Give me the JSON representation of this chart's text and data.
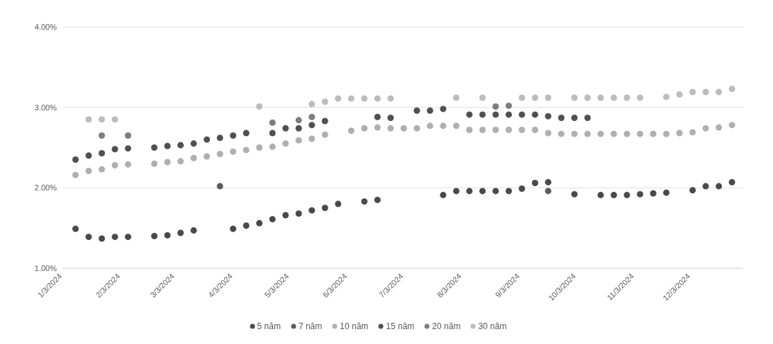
{
  "chart_data": {
    "type": "scatter",
    "xlim": [
      "2024-01-03",
      "2024-12-31"
    ],
    "xticks": [
      {
        "value": "2024-01-03",
        "label": "1/3/2024"
      },
      {
        "value": "2024-02-03",
        "label": "2/3/2024"
      },
      {
        "value": "2024-03-03",
        "label": "3/3/2024"
      },
      {
        "value": "2024-04-03",
        "label": "4/3/2024"
      },
      {
        "value": "2024-05-03",
        "label": "5/3/2024"
      },
      {
        "value": "2024-06-03",
        "label": "6/3/2024"
      },
      {
        "value": "2024-07-03",
        "label": "7/3/2024"
      },
      {
        "value": "2024-08-03",
        "label": "8/3/2024"
      },
      {
        "value": "2024-09-03",
        "label": "9/3/2024"
      },
      {
        "value": "2024-10-03",
        "label": "10/3/2024"
      },
      {
        "value": "2024-11-03",
        "label": "11/3/2024"
      },
      {
        "value": "2024-12-03",
        "label": "12/3/2024"
      }
    ],
    "ylim": [
      1,
      4
    ],
    "yticks": [
      {
        "value": 1,
        "label": "1.00%"
      },
      {
        "value": 2,
        "label": "2.00%"
      },
      {
        "value": 3,
        "label": "3.00%"
      },
      {
        "value": 4,
        "label": "4.00%"
      }
    ],
    "grid": "y",
    "legend": "bottom",
    "marker": "circle",
    "series": [
      {
        "name": "5 năm",
        "color": "#4a4a4a",
        "x": [
          "2024-01-10",
          "2024-01-17",
          "2024-01-24",
          "2024-01-31",
          "2024-02-07",
          "2024-02-21",
          "2024-02-28",
          "2024-03-06",
          "2024-03-13",
          "2024-04-03",
          "2024-04-10",
          "2024-04-17",
          "2024-04-24",
          "2024-05-01",
          "2024-05-08",
          "2024-05-15",
          "2024-05-22",
          "2024-05-29",
          "2024-06-12",
          "2024-06-19",
          "2024-07-24",
          "2024-07-31",
          "2024-08-07",
          "2024-08-14",
          "2024-08-21",
          "2024-08-28",
          "2024-09-04",
          "2024-09-11",
          "2024-09-18",
          "2024-10-02",
          "2024-10-16",
          "2024-10-23",
          "2024-10-30",
          "2024-11-06",
          "2024-11-13",
          "2024-11-20",
          "2024-12-04",
          "2024-12-11",
          "2024-12-18",
          "2024-12-25"
        ],
        "values": [
          1.49,
          1.39,
          1.37,
          1.39,
          1.39,
          1.4,
          1.41,
          1.44,
          1.47,
          1.49,
          1.53,
          1.56,
          1.61,
          1.66,
          1.68,
          1.72,
          1.75,
          1.8,
          1.83,
          1.85,
          1.91,
          1.96,
          1.96,
          1.96,
          1.96,
          1.96,
          1.99,
          2.06,
          2.07,
          1.92,
          1.91,
          1.91,
          1.91,
          1.92,
          1.93,
          1.94,
          1.97,
          2.02,
          2.02,
          2.07
        ]
      },
      {
        "name": "7 năm",
        "color": "#5c5c5c",
        "x": [
          "2024-03-27",
          "2024-09-18"
        ],
        "values": [
          2.02,
          1.96
        ]
      },
      {
        "name": "10 năm",
        "color": "#afafaf",
        "x": [
          "2024-01-10",
          "2024-01-17",
          "2024-01-24",
          "2024-01-31",
          "2024-02-07",
          "2024-02-21",
          "2024-02-28",
          "2024-03-06",
          "2024-03-13",
          "2024-03-20",
          "2024-03-27",
          "2024-04-03",
          "2024-04-10",
          "2024-04-17",
          "2024-04-24",
          "2024-05-01",
          "2024-05-08",
          "2024-05-15",
          "2024-05-22",
          "2024-06-05",
          "2024-06-12",
          "2024-06-19",
          "2024-06-26",
          "2024-07-03",
          "2024-07-10",
          "2024-07-17",
          "2024-07-24",
          "2024-07-31",
          "2024-08-07",
          "2024-08-14",
          "2024-08-21",
          "2024-08-28",
          "2024-09-04",
          "2024-09-11",
          "2024-09-18",
          "2024-09-25",
          "2024-10-02",
          "2024-10-09",
          "2024-10-16",
          "2024-10-23",
          "2024-10-30",
          "2024-11-06",
          "2024-11-13",
          "2024-11-20",
          "2024-11-27",
          "2024-12-04",
          "2024-12-11",
          "2024-12-18",
          "2024-12-25"
        ],
        "values": [
          2.16,
          2.21,
          2.23,
          2.28,
          2.29,
          2.3,
          2.32,
          2.33,
          2.37,
          2.39,
          2.42,
          2.45,
          2.47,
          2.5,
          2.51,
          2.55,
          2.59,
          2.61,
          2.66,
          2.71,
          2.74,
          2.75,
          2.74,
          2.74,
          2.74,
          2.77,
          2.77,
          2.77,
          2.72,
          2.72,
          2.72,
          2.72,
          2.72,
          2.72,
          2.68,
          2.67,
          2.67,
          2.67,
          2.67,
          2.67,
          2.67,
          2.67,
          2.67,
          2.67,
          2.68,
          2.69,
          2.74,
          2.75,
          2.78
        ]
      },
      {
        "name": "15 năm",
        "color": "#505050",
        "x": [
          "2024-01-10",
          "2024-01-17",
          "2024-01-24",
          "2024-01-31",
          "2024-02-07",
          "2024-02-21",
          "2024-02-28",
          "2024-03-06",
          "2024-03-13",
          "2024-03-20",
          "2024-03-27",
          "2024-04-03",
          "2024-04-10",
          "2024-04-24",
          "2024-05-01",
          "2024-05-08",
          "2024-05-15",
          "2024-05-22",
          "2024-06-19",
          "2024-06-26",
          "2024-07-10",
          "2024-07-17",
          "2024-07-24",
          "2024-08-07",
          "2024-08-14",
          "2024-08-21",
          "2024-08-28",
          "2024-09-04",
          "2024-09-11",
          "2024-09-18",
          "2024-09-25",
          "2024-10-02",
          "2024-10-09"
        ],
        "values": [
          2.35,
          2.4,
          2.43,
          2.48,
          2.49,
          2.5,
          2.52,
          2.53,
          2.55,
          2.6,
          2.62,
          2.65,
          2.68,
          2.68,
          2.74,
          2.74,
          2.78,
          2.83,
          2.88,
          2.87,
          2.96,
          2.96,
          2.98,
          2.91,
          2.91,
          2.91,
          2.91,
          2.91,
          2.91,
          2.89,
          2.87,
          2.87,
          2.87
        ]
      },
      {
        "name": "20 năm",
        "color": "#7d7d7d",
        "x": [
          "2024-01-24",
          "2024-02-07",
          "2024-04-24",
          "2024-05-08",
          "2024-05-15",
          "2024-08-21",
          "2024-08-28"
        ],
        "values": [
          2.65,
          2.65,
          2.81,
          2.84,
          2.88,
          3.01,
          3.02
        ]
      },
      {
        "name": "30 năm",
        "color": "#bcbcbc",
        "x": [
          "2024-01-17",
          "2024-01-24",
          "2024-01-31",
          "2024-04-17",
          "2024-05-15",
          "2024-05-22",
          "2024-05-29",
          "2024-06-05",
          "2024-06-12",
          "2024-06-19",
          "2024-06-26",
          "2024-07-31",
          "2024-08-14",
          "2024-09-04",
          "2024-09-11",
          "2024-09-18",
          "2024-10-02",
          "2024-10-09",
          "2024-10-16",
          "2024-10-23",
          "2024-10-30",
          "2024-11-06",
          "2024-11-20",
          "2024-11-27",
          "2024-12-04",
          "2024-12-11",
          "2024-12-18",
          "2024-12-25"
        ],
        "values": [
          2.85,
          2.85,
          2.85,
          3.01,
          3.04,
          3.07,
          3.11,
          3.11,
          3.11,
          3.11,
          3.11,
          3.12,
          3.12,
          3.12,
          3.12,
          3.12,
          3.12,
          3.12,
          3.12,
          3.12,
          3.12,
          3.12,
          3.13,
          3.16,
          3.19,
          3.19,
          3.19,
          3.23
        ]
      }
    ]
  }
}
